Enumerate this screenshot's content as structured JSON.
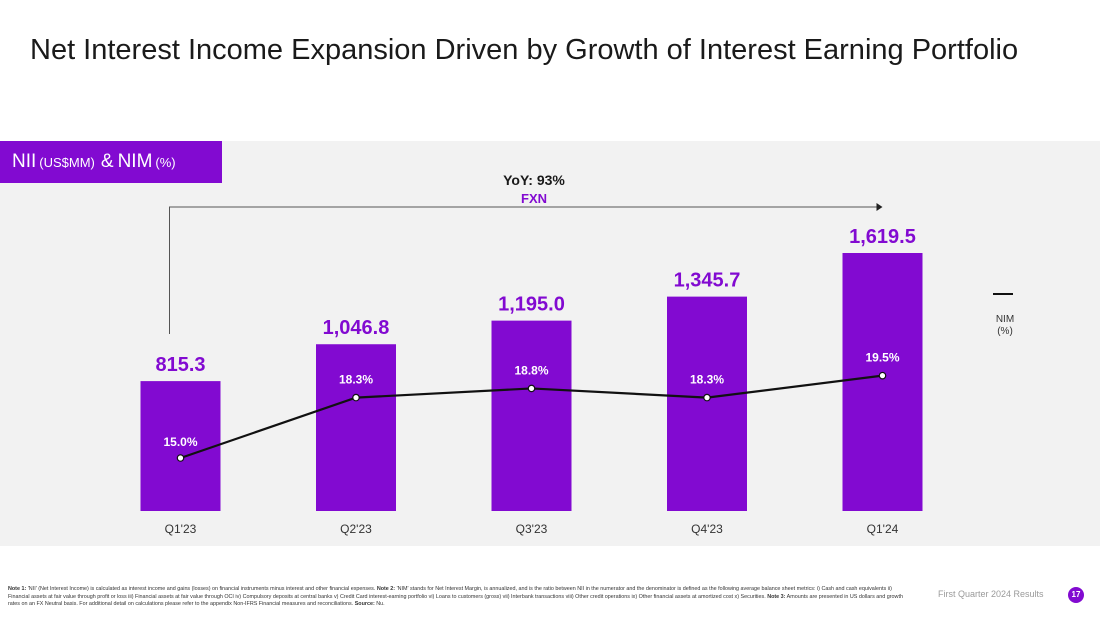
{
  "page": {
    "title": "Net Interest Income Expansion Driven by Growth of Interest Earning Portfolio",
    "panel_tag": {
      "main": "NII",
      "unit1": "(US$MM)",
      "amp": "&",
      "metric": "NIM",
      "unit2": "(%)"
    },
    "legend": {
      "label_line1": "NIM",
      "label_line2": "(%)"
    },
    "footer": {
      "label": "First Quarter 2024 Results",
      "page_number": "17",
      "note1_label": "Note 1:",
      "note1_text": " 'NII' (Net Interest Income) is calculated as interest income and gains (losses) on financial instruments minus interest and other financial expenses. ",
      "note2_label": "Note 2:",
      "note2_text": " 'NIM' stands for Net Interest Margin, is annualized, and is the ratio between NII in the numerator and the denominator is defined as the following average balance sheet metrics: i) Cash and cash equivalents ii) Financial assets at fair value through profit or loss iii) Financial assets at fair value through OCI iv) Compulsory deposits at central banks v) Credit Card interest-earning portfolio vi) Loans to customers (gross) vii) Interbank transactions viii) Other credit operations ix) Other financial assets at amortized cost x) Securities. ",
      "note3_label": "Note 3:",
      "note3_text": " Amounts are presented in US dollars and growth rates on an FX Neutral basis. For additional detail on calculations please refer to the appendix Non-IFRS Financial measures and reconciliations. ",
      "source_label": "Source:",
      "source_text": " Nu."
    }
  },
  "colors": {
    "bar": "#820ad1",
    "accent": "#820ad1",
    "line": "#111111",
    "panel_bg": "#f2f2f2"
  },
  "chart_data": {
    "type": "bar",
    "title": "NII (US$MM) & NIM (%)",
    "categories": [
      "Q1'23",
      "Q2'23",
      "Q3'23",
      "Q4'23",
      "Q1'24"
    ],
    "series": [
      {
        "name": "NII",
        "unit": "US$MM",
        "values": [
          815.3,
          1046.8,
          1195.0,
          1345.7,
          1619.5
        ],
        "labels": [
          "815.3",
          "1,046.8",
          "1,195.0",
          "1,345.7",
          "1,619.5"
        ]
      },
      {
        "name": "NIM",
        "unit": "%",
        "type": "line",
        "values": [
          15.0,
          18.3,
          18.8,
          18.3,
          19.5
        ],
        "labels": [
          "15.0%",
          "18.3%",
          "18.8%",
          "18.3%",
          "19.5%"
        ]
      }
    ],
    "annotation": {
      "yoy_text": "YoY: 93%",
      "fxn_text": "FXN"
    },
    "ylim_bars": [
      0,
      1619.5
    ],
    "grid": false
  }
}
